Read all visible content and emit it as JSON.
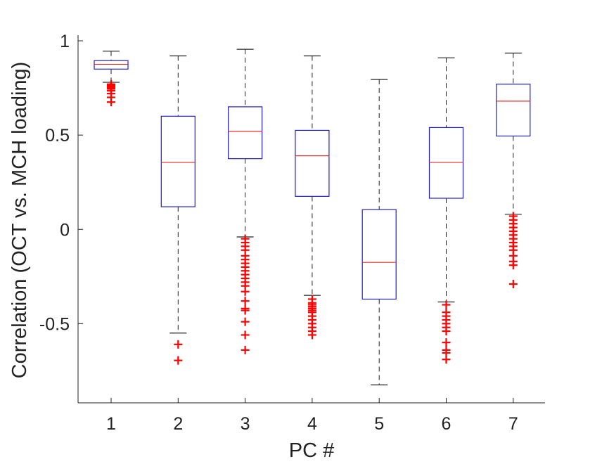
{
  "chart_data": {
    "type": "box",
    "xlabel": "PC #",
    "ylabel": "Correlation (OCT vs. MCH loading)",
    "ylim": [
      -0.92,
      1.03
    ],
    "yticks": [
      -0.5,
      0,
      0.5,
      1
    ],
    "ytick_labels": [
      "-0.5",
      "0",
      "0.5",
      "1"
    ],
    "categories": [
      "1",
      "2",
      "3",
      "4",
      "5",
      "6",
      "7"
    ],
    "colors": {
      "box": "#1f1fd0",
      "median": "#e8302a",
      "outlier": "#ff0000",
      "whisker": "#222222"
    },
    "boxes": [
      {
        "category": "1",
        "whisker_low": 0.78,
        "q1": 0.85,
        "median": 0.875,
        "q3": 0.895,
        "whisker_high": 0.945,
        "outliers": [
          0.77,
          0.765,
          0.76,
          0.755,
          0.75,
          0.745,
          0.735,
          0.72,
          0.7,
          0.675
        ]
      },
      {
        "category": "2",
        "whisker_low": -0.55,
        "q1": 0.12,
        "median": 0.355,
        "q3": 0.6,
        "whisker_high": 0.92,
        "outliers": [
          -0.61,
          -0.695
        ]
      },
      {
        "category": "3",
        "whisker_low": -0.04,
        "q1": 0.375,
        "median": 0.52,
        "q3": 0.65,
        "whisker_high": 0.955,
        "outliers": [
          -0.05,
          -0.07,
          -0.09,
          -0.11,
          -0.14,
          -0.16,
          -0.18,
          -0.2,
          -0.22,
          -0.24,
          -0.26,
          -0.28,
          -0.3,
          -0.33,
          -0.38,
          -0.42,
          -0.43,
          -0.49,
          -0.56,
          -0.64
        ]
      },
      {
        "category": "4",
        "whisker_low": -0.35,
        "q1": 0.175,
        "median": 0.39,
        "q3": 0.525,
        "whisker_high": 0.92,
        "outliers": [
          -0.37,
          -0.39,
          -0.4,
          -0.41,
          -0.42,
          -0.43,
          -0.44,
          -0.46,
          -0.48,
          -0.5,
          -0.52,
          -0.54,
          -0.56
        ]
      },
      {
        "category": "5",
        "whisker_low": -0.825,
        "q1": -0.37,
        "median": -0.175,
        "q3": 0.105,
        "whisker_high": 0.795,
        "outliers": []
      },
      {
        "category": "6",
        "whisker_low": -0.385,
        "q1": 0.165,
        "median": 0.355,
        "q3": 0.54,
        "whisker_high": 0.91,
        "outliers": [
          -0.4,
          -0.44,
          -0.46,
          -0.48,
          -0.5,
          -0.52,
          -0.54,
          -0.6,
          -0.64,
          -0.655,
          -0.69
        ]
      },
      {
        "category": "7",
        "whisker_low": 0.08,
        "q1": 0.495,
        "median": 0.68,
        "q3": 0.77,
        "whisker_high": 0.935,
        "outliers": [
          0.07,
          0.05,
          0.03,
          0.01,
          -0.01,
          -0.03,
          -0.05,
          -0.07,
          -0.09,
          -0.11,
          -0.14,
          -0.17,
          -0.19,
          -0.29
        ]
      }
    ]
  }
}
